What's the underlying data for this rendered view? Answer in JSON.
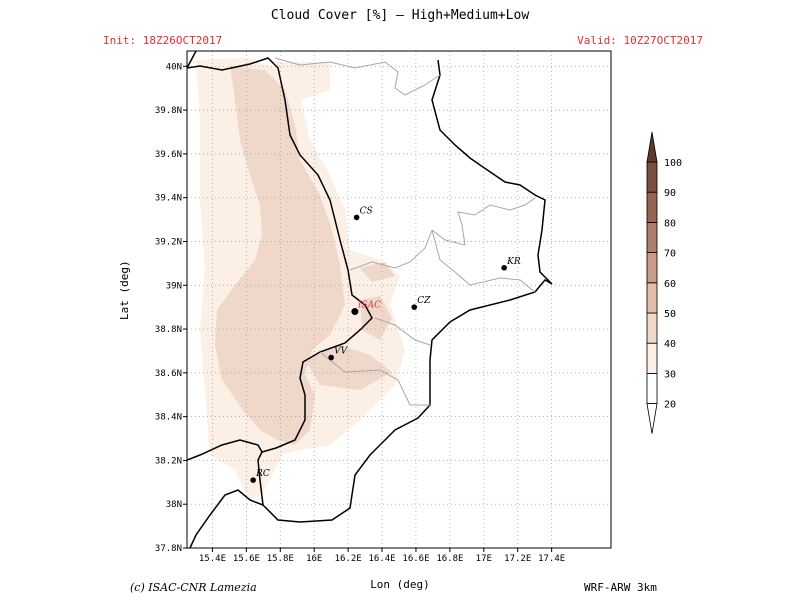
{
  "title": "Cloud Cover [%] — High+Medium+Low",
  "init": "Init: 18Z26OCT2017",
  "valid": "Valid: 10Z27OCT2017",
  "xaxis_label": "Lon (deg)",
  "yaxis_label": "Lat (deg)",
  "credit": "(c) ISAC-CNR Lamezia",
  "model": "WRF-ARW 3km",
  "map": {
    "lon_range": [
      15.25,
      17.75
    ],
    "lat_range": [
      37.8,
      40.07
    ],
    "lon_ticks": [
      "15.4E",
      "15.6E",
      "15.8E",
      "16E",
      "16.2E",
      "16.4E",
      "16.6E",
      "16.8E",
      "17E",
      "17.2E",
      "17.4E"
    ],
    "lon_values": [
      15.4,
      15.6,
      15.8,
      16.0,
      16.2,
      16.4,
      16.6,
      16.8,
      17.0,
      17.2,
      17.4
    ],
    "lat_ticks": [
      "37.8N",
      "38N",
      "38.2N",
      "38.4N",
      "38.6N",
      "38.8N",
      "39N",
      "39.2N",
      "39.4N",
      "39.6N",
      "39.8N",
      "40N"
    ],
    "lat_values": [
      37.8,
      38.0,
      38.2,
      38.4,
      38.6,
      38.8,
      39.0,
      39.2,
      39.4,
      39.6,
      39.8,
      40.0
    ],
    "grid": true,
    "cities": [
      {
        "name": "CS",
        "lon": 16.25,
        "lat": 39.31,
        "highlight": false
      },
      {
        "name": "ISAC",
        "lon": 16.24,
        "lat": 38.88,
        "highlight": true
      },
      {
        "name": "CZ",
        "lon": 16.59,
        "lat": 38.9,
        "highlight": false
      },
      {
        "name": "VV",
        "lon": 16.1,
        "lat": 38.67,
        "highlight": false
      },
      {
        "name": "KR",
        "lon": 17.12,
        "lat": 39.08,
        "highlight": false
      },
      {
        "name": "RC",
        "lon": 15.64,
        "lat": 38.11,
        "highlight": false
      }
    ]
  },
  "colorbar": {
    "labels": [
      "20",
      "30",
      "40",
      "50",
      "60",
      "70",
      "80",
      "90",
      "100"
    ],
    "colors": [
      "#ffffff",
      "#fbefe6",
      "#efd8c9",
      "#e0beaa",
      "#c89c86",
      "#ad7f6b",
      "#936553",
      "#7a4e40",
      "#5e3a2e"
    ]
  },
  "colors": {
    "highlight": "#e03030",
    "cloud_light": "#fbefe6",
    "cloud_mid": "#efd8c9",
    "coast": "#000000",
    "border": "#aaaaaa"
  }
}
